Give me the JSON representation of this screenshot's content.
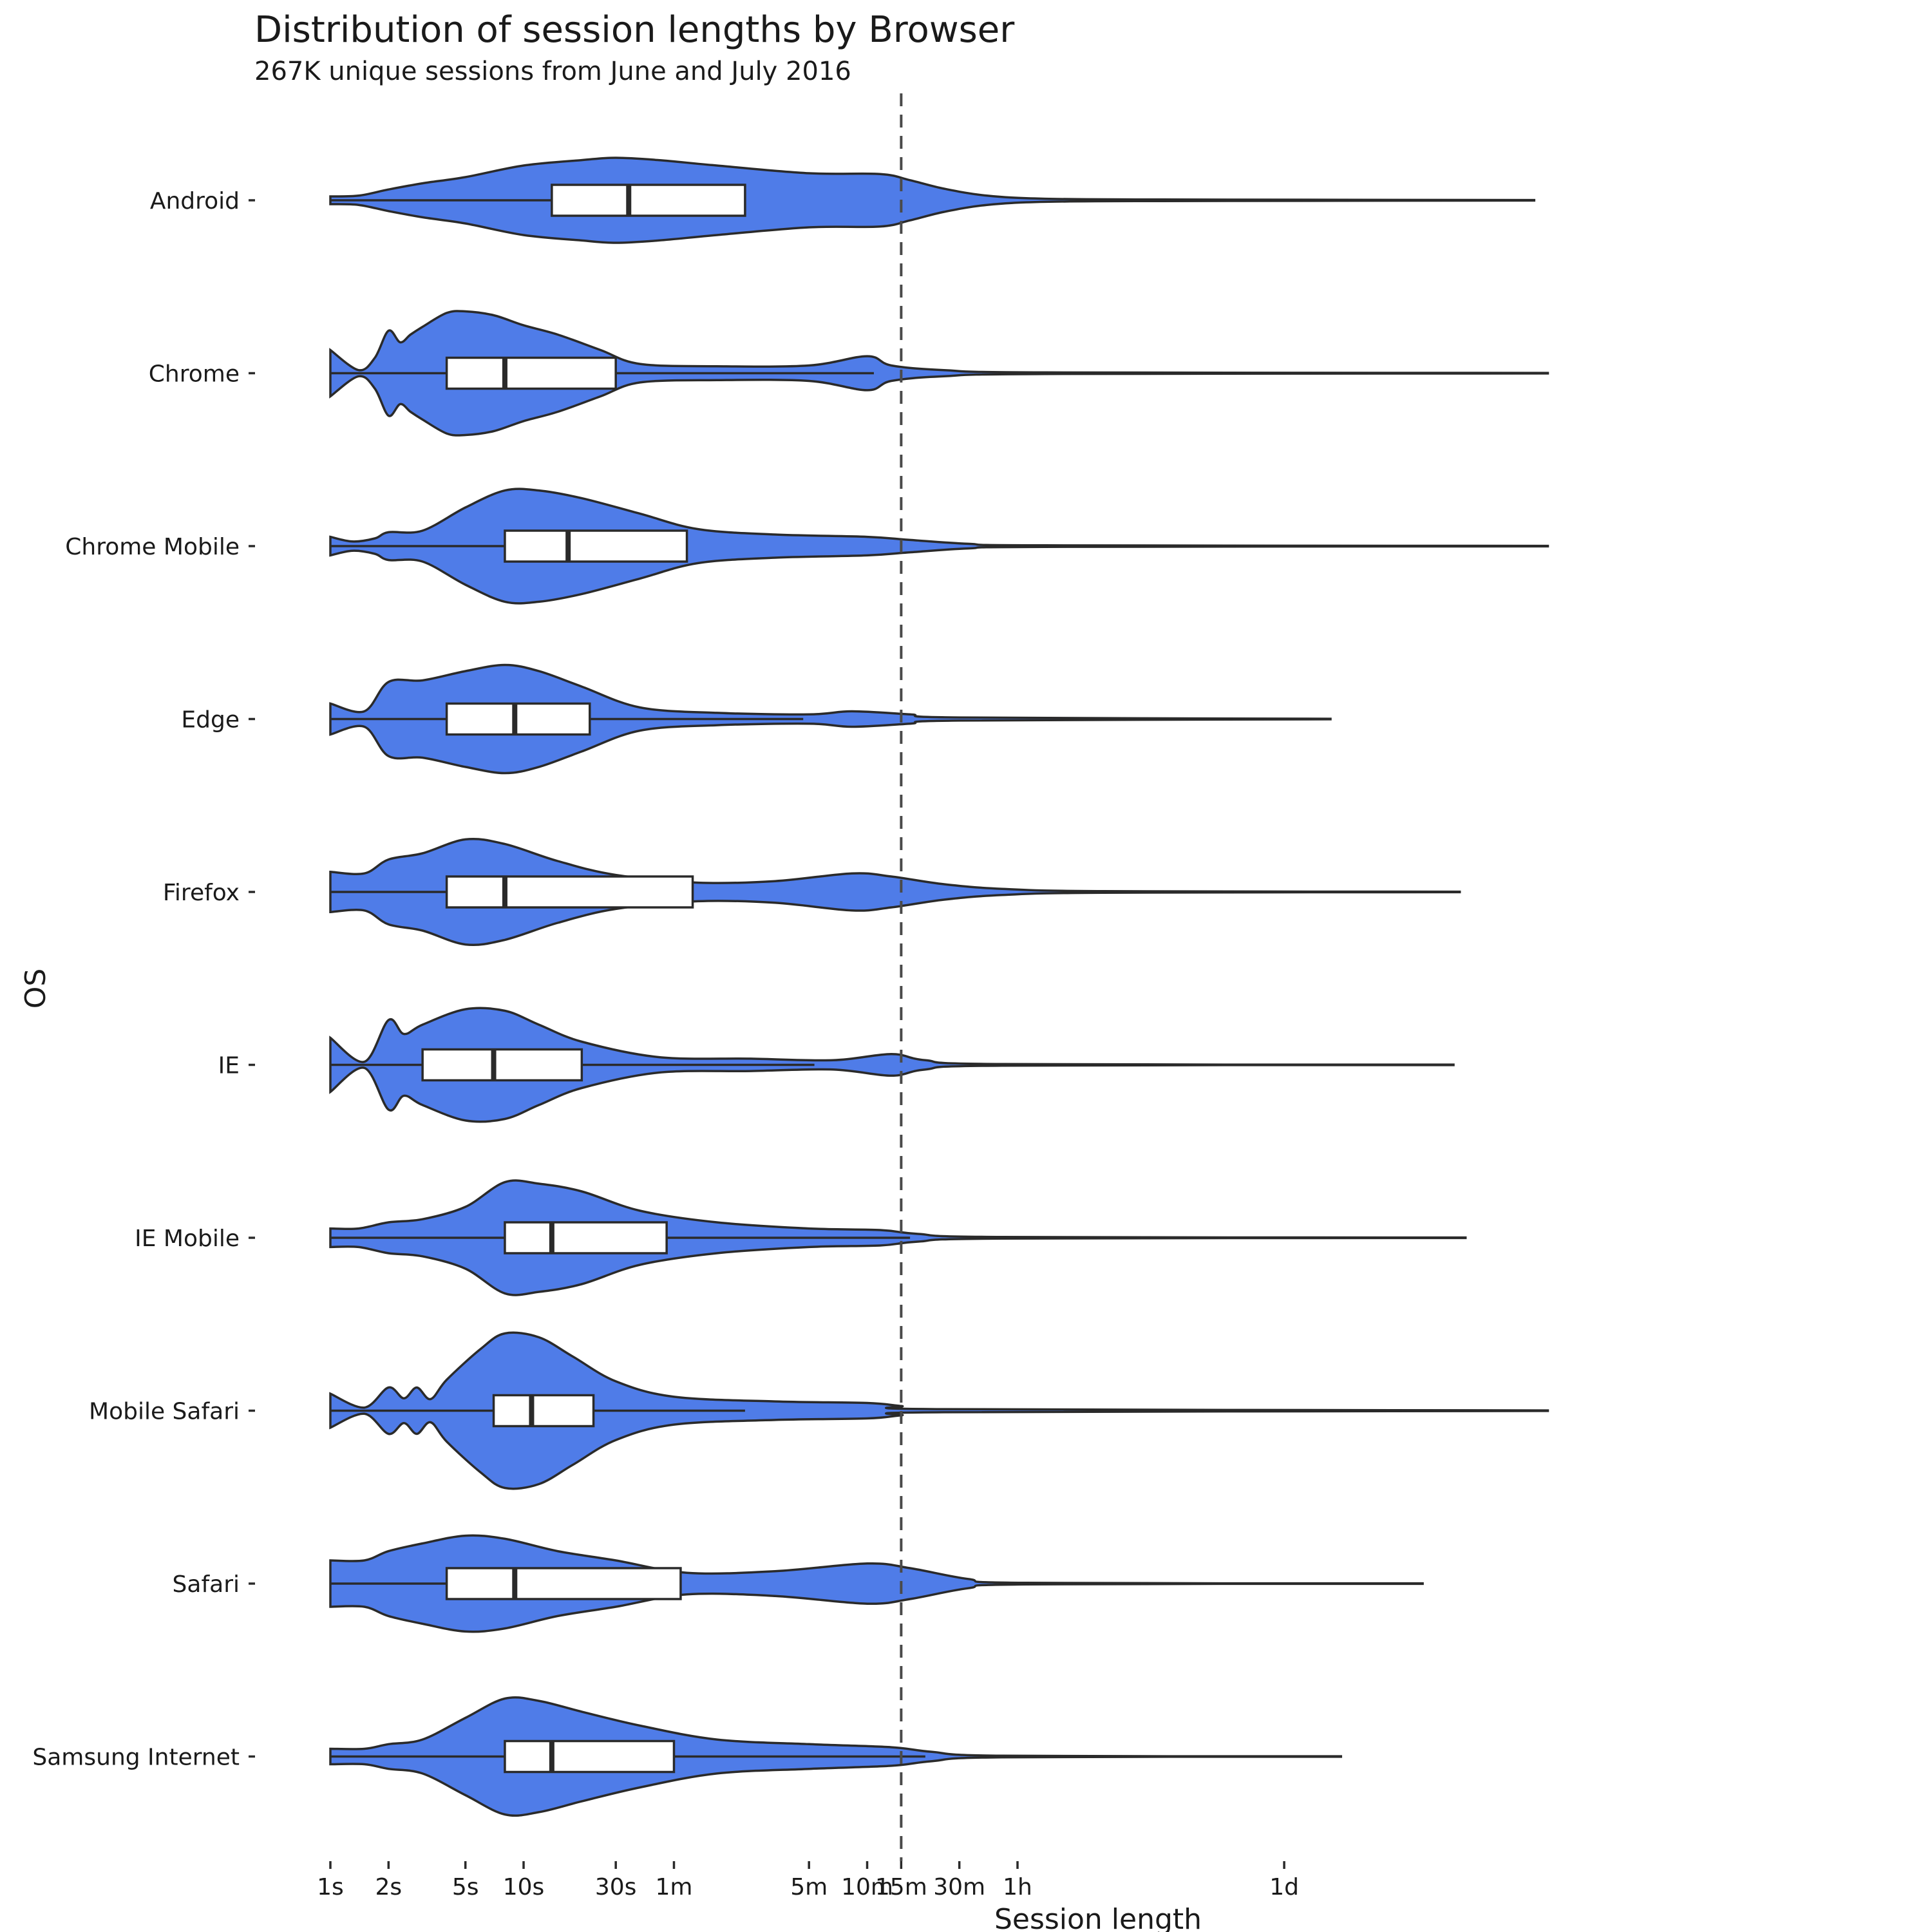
{
  "chart_data": {
    "type": "violin",
    "title": "Distribution of session lengths by Browser",
    "subtitle": "267K unique sessions from June and July 2016",
    "xlabel": "Session length",
    "ylabel": "OS",
    "x_scale": "log",
    "x_unit": "seconds",
    "x_ticks": [
      {
        "label": "1s",
        "value": 1
      },
      {
        "label": "2s",
        "value": 2
      },
      {
        "label": "5s",
        "value": 5
      },
      {
        "label": "10s",
        "value": 10
      },
      {
        "label": "30s",
        "value": 30
      },
      {
        "label": "1m",
        "value": 60
      },
      {
        "label": "5m",
        "value": 300
      },
      {
        "label": "10m",
        "value": 600
      },
      {
        "label": "15m",
        "value": 900
      },
      {
        "label": "30m",
        "value": 1800
      },
      {
        "label": "1h",
        "value": 3600
      },
      {
        "label": "1d",
        "value": 86400
      }
    ],
    "xlim": [
      1,
      2200000
    ],
    "reference_line": {
      "value": 900,
      "style": "dashed"
    },
    "fill_color": "#4f7ce8",
    "categories": [
      "Android",
      "Chrome",
      "Chrome Mobile",
      "Edge",
      "Firefox",
      "IE",
      "IE Mobile",
      "Mobile Safari",
      "Safari",
      "Samsung Internet"
    ],
    "series": [
      {
        "category": "Android",
        "min": 1,
        "q1": 14,
        "median": 35,
        "q3": 140,
        "whisker_high": 140,
        "max": 1700000,
        "density": [
          [
            1,
            0.05
          ],
          [
            1.4,
            0.06
          ],
          [
            2,
            0.14
          ],
          [
            3,
            0.22
          ],
          [
            5,
            0.3
          ],
          [
            10,
            0.45
          ],
          [
            20,
            0.52
          ],
          [
            30,
            0.55
          ],
          [
            50,
            0.52
          ],
          [
            100,
            0.45
          ],
          [
            300,
            0.35
          ],
          [
            700,
            0.34
          ],
          [
            1000,
            0.26
          ],
          [
            1500,
            0.15
          ],
          [
            2500,
            0.06
          ],
          [
            5000,
            0.02
          ],
          [
            20000,
            0.01
          ],
          [
            1700000,
            0.003
          ]
        ]
      },
      {
        "category": "Chrome",
        "min": 1,
        "q1": 4,
        "median": 8,
        "q3": 30,
        "whisker_high": 650,
        "max": 2000000,
        "density": [
          [
            1,
            0.3
          ],
          [
            1.4,
            0.04
          ],
          [
            1.7,
            0.2
          ],
          [
            2,
            0.55
          ],
          [
            2.3,
            0.4
          ],
          [
            2.6,
            0.5
          ],
          [
            3,
            0.6
          ],
          [
            4,
            0.78
          ],
          [
            5,
            0.8
          ],
          [
            7,
            0.75
          ],
          [
            10,
            0.62
          ],
          [
            15,
            0.5
          ],
          [
            25,
            0.3
          ],
          [
            40,
            0.12
          ],
          [
            100,
            0.09
          ],
          [
            300,
            0.1
          ],
          [
            600,
            0.22
          ],
          [
            800,
            0.1
          ],
          [
            1500,
            0.04
          ],
          [
            5000,
            0.01
          ],
          [
            2000000,
            0.003
          ]
        ]
      },
      {
        "category": "Chrome Mobile",
        "min": 1,
        "q1": 8,
        "median": 17,
        "q3": 70,
        "whisker_high": 70,
        "max": 2000000,
        "density": [
          [
            1,
            0.12
          ],
          [
            1.3,
            0.06
          ],
          [
            1.7,
            0.1
          ],
          [
            2,
            0.18
          ],
          [
            3,
            0.2
          ],
          [
            5,
            0.5
          ],
          [
            8,
            0.72
          ],
          [
            12,
            0.72
          ],
          [
            20,
            0.62
          ],
          [
            40,
            0.42
          ],
          [
            80,
            0.22
          ],
          [
            200,
            0.15
          ],
          [
            600,
            0.12
          ],
          [
            1000,
            0.08
          ],
          [
            2000,
            0.03
          ],
          [
            5000,
            0.01
          ],
          [
            2000000,
            0.003
          ]
        ]
      },
      {
        "category": "Edge",
        "min": 1,
        "q1": 4,
        "median": 9,
        "q3": 22,
        "whisker_high": 280,
        "max": 150000,
        "density": [
          [
            1,
            0.2
          ],
          [
            1.5,
            0.1
          ],
          [
            2,
            0.48
          ],
          [
            3,
            0.5
          ],
          [
            5,
            0.62
          ],
          [
            8,
            0.7
          ],
          [
            12,
            0.62
          ],
          [
            20,
            0.42
          ],
          [
            40,
            0.15
          ],
          [
            100,
            0.08
          ],
          [
            300,
            0.06
          ],
          [
            500,
            0.1
          ],
          [
            1000,
            0.06
          ],
          [
            1800,
            0.02
          ],
          [
            150000,
            0.003
          ]
        ]
      },
      {
        "category": "Firefox",
        "min": 1,
        "q1": 4,
        "median": 8,
        "q3": 75,
        "whisker_high": 75,
        "max": 700000,
        "density": [
          [
            1,
            0.26
          ],
          [
            1.5,
            0.24
          ],
          [
            2,
            0.42
          ],
          [
            3,
            0.5
          ],
          [
            5,
            0.68
          ],
          [
            8,
            0.62
          ],
          [
            15,
            0.4
          ],
          [
            30,
            0.22
          ],
          [
            80,
            0.12
          ],
          [
            200,
            0.14
          ],
          [
            500,
            0.24
          ],
          [
            800,
            0.2
          ],
          [
            1500,
            0.1
          ],
          [
            3000,
            0.04
          ],
          [
            10000,
            0.01
          ],
          [
            700000,
            0.003
          ]
        ]
      },
      {
        "category": "IE",
        "min": 1,
        "q1": 3,
        "median": 7,
        "q3": 20,
        "whisker_high": 320,
        "max": 650000,
        "density": [
          [
            1,
            0.35
          ],
          [
            1.5,
            0.04
          ],
          [
            2,
            0.58
          ],
          [
            2.4,
            0.4
          ],
          [
            3,
            0.52
          ],
          [
            5,
            0.72
          ],
          [
            8,
            0.7
          ],
          [
            12,
            0.52
          ],
          [
            20,
            0.3
          ],
          [
            50,
            0.1
          ],
          [
            150,
            0.08
          ],
          [
            400,
            0.06
          ],
          [
            800,
            0.14
          ],
          [
            1200,
            0.06
          ],
          [
            3000,
            0.01
          ],
          [
            650000,
            0.003
          ]
        ]
      },
      {
        "category": "IE Mobile",
        "min": 1,
        "q1": 8,
        "median": 14,
        "q3": 55,
        "whisker_high": 1000,
        "max": 750000,
        "density": [
          [
            1,
            0.12
          ],
          [
            1.4,
            0.12
          ],
          [
            2,
            0.2
          ],
          [
            3,
            0.24
          ],
          [
            5,
            0.4
          ],
          [
            8,
            0.72
          ],
          [
            12,
            0.7
          ],
          [
            20,
            0.6
          ],
          [
            40,
            0.35
          ],
          [
            100,
            0.2
          ],
          [
            300,
            0.12
          ],
          [
            700,
            0.1
          ],
          [
            1100,
            0.05
          ],
          [
            3000,
            0.01
          ],
          [
            750000,
            0.003
          ]
        ]
      },
      {
        "category": "Mobile Safari",
        "min": 1,
        "q1": 7,
        "median": 11,
        "q3": 23,
        "whisker_high": 140,
        "max": 2000000,
        "density": [
          [
            1,
            0.22
          ],
          [
            1.5,
            0.04
          ],
          [
            2,
            0.3
          ],
          [
            2.4,
            0.16
          ],
          [
            2.8,
            0.3
          ],
          [
            3.3,
            0.15
          ],
          [
            4,
            0.4
          ],
          [
            6,
            0.8
          ],
          [
            8,
            1.0
          ],
          [
            12,
            0.95
          ],
          [
            18,
            0.7
          ],
          [
            30,
            0.38
          ],
          [
            60,
            0.18
          ],
          [
            200,
            0.12
          ],
          [
            600,
            0.1
          ],
          [
            900,
            0.06
          ],
          [
            1500,
            0.02
          ],
          [
            2000000,
            0.003
          ]
        ]
      },
      {
        "category": "Safari",
        "min": 1,
        "q1": 4,
        "median": 9,
        "q3": 65,
        "whisker_high": 65,
        "max": 450000,
        "density": [
          [
            1,
            0.3
          ],
          [
            1.5,
            0.3
          ],
          [
            2,
            0.42
          ],
          [
            3,
            0.52
          ],
          [
            5,
            0.62
          ],
          [
            8,
            0.58
          ],
          [
            15,
            0.42
          ],
          [
            30,
            0.3
          ],
          [
            70,
            0.14
          ],
          [
            200,
            0.16
          ],
          [
            600,
            0.26
          ],
          [
            1000,
            0.2
          ],
          [
            2000,
            0.06
          ],
          [
            4000,
            0.01
          ],
          [
            450000,
            0.003
          ]
        ]
      },
      {
        "category": "Samsung Internet",
        "min": 1,
        "q1": 8,
        "median": 14,
        "q3": 60,
        "whisker_high": 1200,
        "max": 170000,
        "density": [
          [
            1,
            0.1
          ],
          [
            1.5,
            0.1
          ],
          [
            2,
            0.16
          ],
          [
            3,
            0.22
          ],
          [
            5,
            0.5
          ],
          [
            8,
            0.75
          ],
          [
            12,
            0.72
          ],
          [
            20,
            0.58
          ],
          [
            40,
            0.4
          ],
          [
            100,
            0.22
          ],
          [
            300,
            0.16
          ],
          [
            800,
            0.12
          ],
          [
            1300,
            0.06
          ],
          [
            3000,
            0.01
          ],
          [
            170000,
            0.003
          ]
        ]
      }
    ]
  }
}
